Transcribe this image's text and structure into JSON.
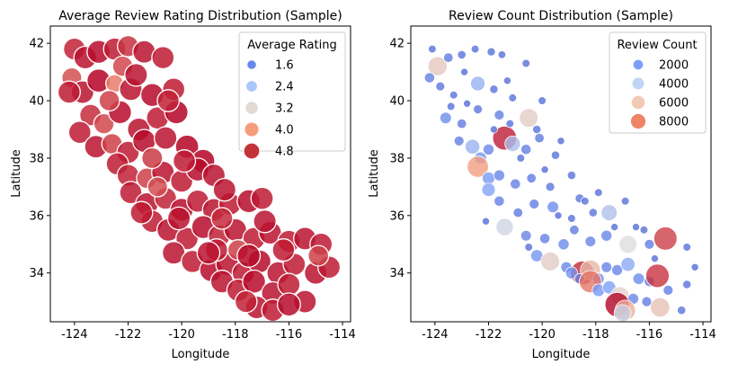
{
  "chart_data": [
    {
      "type": "scatter",
      "title": "Average Review Rating Distribution (Sample)",
      "xlabel": "Longitude",
      "ylabel": "Latitude",
      "xlim": [
        -124.9,
        -113.7
      ],
      "ylim": [
        32.3,
        42.6
      ],
      "xticks": [
        "-124",
        "-122",
        "-120",
        "-118",
        "-116",
        "-114"
      ],
      "yticks": [
        "34",
        "36",
        "38",
        "40",
        "42"
      ],
      "grid": false,
      "legend_position": "top-right",
      "legend": {
        "title": "Average Rating",
        "entries": [
          {
            "label": "1.6",
            "color": "#6788ee",
            "size": 6
          },
          {
            "label": "2.4",
            "color": "#aac7fd",
            "size": 8
          },
          {
            "label": "3.2",
            "color": "#e2d9d3",
            "size": 9.5
          },
          {
            "label": "4.0",
            "color": "#f59c7d",
            "size": 11
          },
          {
            "label": "4.8",
            "color": "#c5333a",
            "size": 12.5
          }
        ]
      },
      "hue_variable": "average_rating",
      "colormap": "coolwarm",
      "points": [
        [
          -124.0,
          41.8,
          4.4
        ],
        [
          -123.6,
          41.5,
          4.6
        ],
        [
          -123.1,
          41.7,
          4.7
        ],
        [
          -122.5,
          41.8,
          4.5
        ],
        [
          -122.0,
          41.9,
          4.2
        ],
        [
          -121.4,
          41.7,
          4.6
        ],
        [
          -120.7,
          41.5,
          4.5
        ],
        [
          -124.1,
          40.8,
          3.8
        ],
        [
          -123.7,
          40.3,
          4.6
        ],
        [
          -123.1,
          40.7,
          4.8
        ],
        [
          -122.5,
          40.6,
          3.2
        ],
        [
          -121.9,
          40.4,
          4.6
        ],
        [
          -121.1,
          40.2,
          4.7
        ],
        [
          -120.3,
          40.4,
          4.5
        ],
        [
          -124.2,
          40.3,
          4.5
        ],
        [
          -123.4,
          39.5,
          4.3
        ],
        [
          -122.9,
          39.2,
          3.9
        ],
        [
          -122.3,
          39.6,
          4.7
        ],
        [
          -121.6,
          39.0,
          4.6
        ],
        [
          -120.9,
          39.4,
          4.5
        ],
        [
          -120.2,
          39.6,
          4.8
        ],
        [
          -123.8,
          38.9,
          4.5
        ],
        [
          -123.2,
          38.4,
          4.6
        ],
        [
          -122.6,
          38.5,
          4.0
        ],
        [
          -122.0,
          38.2,
          4.5
        ],
        [
          -121.4,
          38.6,
          4.7
        ],
        [
          -120.6,
          38.7,
          4.6
        ],
        [
          -119.8,
          38.4,
          4.8
        ],
        [
          -119.2,
          37.9,
          4.8
        ],
        [
          -122.4,
          37.8,
          4.5
        ],
        [
          -122.0,
          37.4,
          4.4
        ],
        [
          -121.3,
          37.3,
          4.0
        ],
        [
          -120.7,
          37.5,
          4.6
        ],
        [
          -120.0,
          37.2,
          4.5
        ],
        [
          -119.4,
          37.6,
          4.7
        ],
        [
          -118.8,
          37.4,
          4.6
        ],
        [
          -121.9,
          36.8,
          4.5
        ],
        [
          -121.3,
          36.4,
          4.6
        ],
        [
          -120.6,
          36.6,
          4.4
        ],
        [
          -120.0,
          36.2,
          4.7
        ],
        [
          -119.4,
          36.5,
          4.5
        ],
        [
          -118.8,
          36.2,
          4.6
        ],
        [
          -118.2,
          36.4,
          4.5
        ],
        [
          -117.5,
          36.5,
          4.7
        ],
        [
          -121.1,
          35.8,
          4.5
        ],
        [
          -120.5,
          35.5,
          4.6
        ],
        [
          -119.8,
          35.2,
          4.5
        ],
        [
          -119.2,
          35.6,
          4.7
        ],
        [
          -118.6,
          35.3,
          4.4
        ],
        [
          -118.0,
          35.5,
          4.6
        ],
        [
          -117.3,
          35.2,
          4.5
        ],
        [
          -116.7,
          35.4,
          4.6
        ],
        [
          -116.0,
          35.1,
          4.5
        ],
        [
          -115.4,
          35.2,
          4.6
        ],
        [
          -114.8,
          35.0,
          4.5
        ],
        [
          -120.3,
          34.7,
          4.6
        ],
        [
          -119.6,
          34.4,
          4.5
        ],
        [
          -118.9,
          34.1,
          4.7
        ],
        [
          -118.3,
          34.3,
          4.6
        ],
        [
          -117.7,
          34.0,
          4.5
        ],
        [
          -117.1,
          34.4,
          4.7
        ],
        [
          -116.4,
          34.0,
          4.6
        ],
        [
          -115.8,
          34.3,
          4.5
        ],
        [
          -115.0,
          34.0,
          4.6
        ],
        [
          -114.5,
          34.2,
          4.5
        ],
        [
          -118.5,
          33.7,
          4.6
        ],
        [
          -117.9,
          33.4,
          4.5
        ],
        [
          -117.3,
          33.7,
          4.7
        ],
        [
          -116.6,
          33.3,
          4.6
        ],
        [
          -116.0,
          33.6,
          4.5
        ],
        [
          -115.4,
          33.0,
          4.6
        ],
        [
          -117.2,
          32.8,
          4.6
        ],
        [
          -116.6,
          32.7,
          4.5
        ],
        [
          -116.0,
          32.9,
          4.7
        ],
        [
          -117.6,
          33.0,
          4.4
        ],
        [
          -122.2,
          41.2,
          3.9
        ],
        [
          -121.1,
          38.0,
          4.1
        ],
        [
          -119.9,
          37.9,
          4.5
        ],
        [
          -118.4,
          36.9,
          4.6
        ],
        [
          -117.0,
          36.6,
          4.5
        ],
        [
          -117.9,
          34.8,
          4.0
        ],
        [
          -116.9,
          35.8,
          4.6
        ],
        [
          -120.9,
          37.0,
          3.8
        ],
        [
          -122.7,
          40.0,
          4.0
        ],
        [
          -121.7,
          40.9,
          4.6
        ],
        [
          -120.5,
          40.0,
          4.4
        ],
        [
          -116.2,
          34.8,
          4.5
        ],
        [
          -114.9,
          34.6,
          4.0
        ],
        [
          -117.5,
          34.6,
          4.7
        ],
        [
          -118.7,
          34.8,
          4.5
        ],
        [
          -120.1,
          35.9,
          4.6
        ],
        [
          -121.5,
          36.1,
          4.5
        ],
        [
          -118.5,
          35.9,
          4.3
        ],
        [
          -119.0,
          34.7,
          4.6
        ]
      ]
    },
    {
      "type": "scatter",
      "title": "Review Count Distribution (Sample)",
      "xlabel": "Longitude",
      "ylabel": "Latitude",
      "xlim": [
        -124.9,
        -113.7
      ],
      "ylim": [
        32.3,
        42.6
      ],
      "xticks": [
        "-124",
        "-122",
        "-120",
        "-118",
        "-116",
        "-114"
      ],
      "yticks": [
        "34",
        "36",
        "38",
        "40",
        "42"
      ],
      "grid": false,
      "legend_position": "top-right",
      "legend": {
        "title": "Review Count",
        "entries": [
          {
            "label": "2000",
            "color": "#7b9ff9",
            "size": 7
          },
          {
            "label": "4000",
            "color": "#c0d4f5",
            "size": 9
          },
          {
            "label": "6000",
            "color": "#f2c9b4",
            "size": 10.5
          },
          {
            "label": "8000",
            "color": "#ee8468",
            "size": 12
          }
        ]
      },
      "hue_variable": "review_count",
      "colormap": "coolwarm",
      "points": [
        [
          -124.1,
          41.8,
          300
        ],
        [
          -123.9,
          41.2,
          5200
        ],
        [
          -123.5,
          41.5,
          600
        ],
        [
          -123.0,
          41.6,
          400
        ],
        [
          -122.5,
          41.8,
          300
        ],
        [
          -121.9,
          41.7,
          350
        ],
        [
          -121.5,
          41.6,
          250
        ],
        [
          -120.6,
          41.3,
          300
        ],
        [
          -124.2,
          40.8,
          800
        ],
        [
          -123.8,
          40.5,
          500
        ],
        [
          -123.3,
          40.2,
          300
        ],
        [
          -122.4,
          40.6,
          2500
        ],
        [
          -121.8,
          40.4,
          400
        ],
        [
          -121.1,
          40.1,
          300
        ],
        [
          -123.6,
          39.4,
          1200
        ],
        [
          -123.0,
          39.2,
          600
        ],
        [
          -122.4,
          39.7,
          500
        ],
        [
          -121.6,
          39.5,
          700
        ],
        [
          -120.5,
          39.4,
          5000
        ],
        [
          -120.2,
          39.0,
          400
        ],
        [
          -123.1,
          38.6,
          700
        ],
        [
          -122.6,
          38.4,
          2600
        ],
        [
          -122.3,
          38.0,
          1500
        ],
        [
          -122.0,
          38.3,
          1000
        ],
        [
          -121.4,
          38.7,
          9200
        ],
        [
          -121.1,
          38.5,
          3000
        ],
        [
          -120.6,
          38.3,
          800
        ],
        [
          -120.1,
          38.7,
          600
        ],
        [
          -119.5,
          38.1,
          400
        ],
        [
          -122.4,
          37.7,
          6800
        ],
        [
          -122.0,
          37.3,
          1600
        ],
        [
          -121.6,
          37.4,
          1000
        ],
        [
          -121.0,
          37.1,
          800
        ],
        [
          -120.4,
          37.3,
          600
        ],
        [
          -119.7,
          37.0,
          500
        ],
        [
          -118.9,
          37.4,
          400
        ],
        [
          -122.0,
          36.9,
          2000
        ],
        [
          -121.6,
          36.5,
          800
        ],
        [
          -120.9,
          36.1,
          600
        ],
        [
          -120.3,
          36.4,
          700
        ],
        [
          -119.6,
          36.3,
          1200
        ],
        [
          -118.6,
          36.6,
          500
        ],
        [
          -118.1,
          36.1,
          400
        ],
        [
          -117.5,
          36.1,
          3200
        ],
        [
          -116.9,
          36.5,
          300
        ],
        [
          -121.4,
          35.6,
          4000
        ],
        [
          -120.6,
          35.3,
          900
        ],
        [
          -119.9,
          35.2,
          800
        ],
        [
          -119.2,
          35.0,
          1100
        ],
        [
          -118.8,
          35.5,
          600
        ],
        [
          -118.2,
          35.1,
          900
        ],
        [
          -117.6,
          35.3,
          1000
        ],
        [
          -116.8,
          35.0,
          4400
        ],
        [
          -116.0,
          35.0,
          700
        ],
        [
          -115.4,
          35.2,
          8600
        ],
        [
          -114.6,
          34.9,
          300
        ],
        [
          -120.2,
          34.6,
          1500
        ],
        [
          -119.7,
          34.4,
          5000
        ],
        [
          -119.1,
          34.2,
          1000
        ],
        [
          -118.5,
          34.0,
          9000
        ],
        [
          -118.2,
          34.1,
          5800
        ],
        [
          -117.9,
          33.8,
          1200
        ],
        [
          -117.6,
          34.2,
          900
        ],
        [
          -117.2,
          34.1,
          1000
        ],
        [
          -116.8,
          34.3,
          2200
        ],
        [
          -116.4,
          33.8,
          1200
        ],
        [
          -116.0,
          33.7,
          800
        ],
        [
          -115.7,
          33.9,
          8800
        ],
        [
          -115.3,
          33.4,
          700
        ],
        [
          -114.6,
          33.6,
          400
        ],
        [
          -118.9,
          34.0,
          1400
        ],
        [
          -118.6,
          33.8,
          800
        ],
        [
          -118.2,
          33.7,
          7600
        ],
        [
          -117.9,
          33.4,
          1600
        ],
        [
          -117.5,
          33.5,
          1800
        ],
        [
          -117.1,
          33.2,
          4800
        ],
        [
          -116.6,
          33.1,
          1000
        ],
        [
          -116.1,
          33.0,
          700
        ],
        [
          -117.2,
          32.9,
          9600
        ],
        [
          -116.9,
          32.7,
          6200
        ],
        [
          -117.0,
          32.6,
          3800
        ],
        [
          -115.6,
          32.8,
          5400
        ],
        [
          -114.8,
          32.7,
          400
        ],
        [
          -123.4,
          39.8,
          300
        ],
        [
          -122.8,
          39.9,
          200
        ],
        [
          -121.2,
          39.2,
          300
        ],
        [
          -120.8,
          38.0,
          300
        ],
        [
          -119.9,
          37.6,
          200
        ],
        [
          -117.9,
          36.8,
          300
        ],
        [
          -116.5,
          35.6,
          200
        ],
        [
          -115.8,
          34.5,
          200
        ],
        [
          -114.3,
          34.2,
          200
        ],
        [
          -118.4,
          36.5,
          300
        ],
        [
          -122.1,
          35.8,
          200
        ],
        [
          -120.5,
          34.9,
          300
        ],
        [
          -119.4,
          36.0,
          200
        ],
        [
          -118.9,
          35.9,
          300
        ],
        [
          -117.3,
          35.6,
          200
        ],
        [
          -116.2,
          35.5,
          300
        ],
        [
          -121.8,
          39.0,
          200
        ],
        [
          -122.9,
          41.0,
          200
        ],
        [
          -121.3,
          40.7,
          200
        ],
        [
          -120.0,
          40.0,
          300
        ],
        [
          -119.3,
          38.6,
          200
        ]
      ]
    }
  ]
}
